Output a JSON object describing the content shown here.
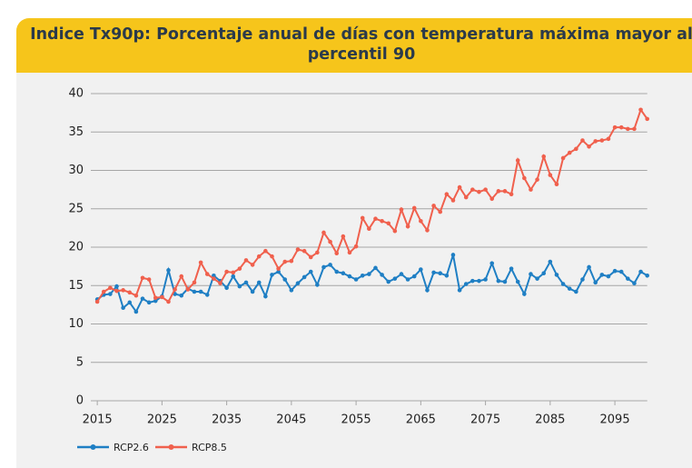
{
  "chart_data": {
    "type": "line",
    "title": "Indice Tx90p: Porcentaje anual de días con temperatura máxima mayor al percentil 90",
    "x": [
      2015,
      2016,
      2017,
      2018,
      2019,
      2020,
      2021,
      2022,
      2023,
      2024,
      2025,
      2026,
      2027,
      2028,
      2029,
      2030,
      2031,
      2032,
      2033,
      2034,
      2035,
      2036,
      2037,
      2038,
      2039,
      2040,
      2041,
      2042,
      2043,
      2044,
      2045,
      2046,
      2047,
      2048,
      2049,
      2050,
      2051,
      2052,
      2053,
      2054,
      2055,
      2056,
      2057,
      2058,
      2059,
      2060,
      2061,
      2062,
      2063,
      2064,
      2065,
      2066,
      2067,
      2068,
      2069,
      2070,
      2071,
      2072,
      2073,
      2074,
      2075,
      2076,
      2077,
      2078,
      2079,
      2080,
      2081,
      2082,
      2083,
      2084,
      2085,
      2086,
      2087,
      2088,
      2089,
      2090,
      2091,
      2092,
      2093,
      2094,
      2095,
      2096,
      2097,
      2098,
      2099,
      2100
    ],
    "series": [
      {
        "name": "RCP2.6",
        "color": "#1f7fc4",
        "values": [
          13.2,
          13.8,
          13.9,
          14.9,
          12.1,
          12.8,
          11.6,
          13.3,
          12.8,
          13.0,
          13.6,
          17.0,
          13.9,
          13.7,
          14.6,
          14.2,
          14.2,
          13.8,
          16.3,
          15.6,
          14.7,
          16.2,
          14.9,
          15.4,
          14.2,
          15.4,
          13.6,
          16.4,
          16.8,
          15.8,
          14.4,
          15.3,
          16.1,
          16.8,
          15.1,
          17.4,
          17.7,
          16.8,
          16.6,
          16.2,
          15.8,
          16.3,
          16.5,
          17.3,
          16.4,
          15.5,
          15.9,
          16.5,
          15.8,
          16.2,
          17.1,
          14.4,
          16.7,
          16.6,
          16.3,
          19.0,
          14.4,
          15.2,
          15.6,
          15.6,
          15.8,
          17.9,
          15.6,
          15.5,
          17.2,
          15.5,
          13.9,
          16.5,
          15.9,
          16.6,
          18.1,
          16.4,
          15.2,
          14.6,
          14.2,
          15.8,
          17.4,
          15.4,
          16.4,
          16.2,
          16.9,
          16.8,
          15.9,
          15.3,
          16.8,
          16.3
        ]
      },
      {
        "name": "RCP8.5",
        "color": "#f0604d",
        "values": [
          12.9,
          14.2,
          14.7,
          14.3,
          14.4,
          14.1,
          13.7,
          16.0,
          15.8,
          13.4,
          13.5,
          12.9,
          14.5,
          16.2,
          14.5,
          15.4,
          18.0,
          16.5,
          15.9,
          15.3,
          16.8,
          16.7,
          17.2,
          18.3,
          17.7,
          18.8,
          19.5,
          18.8,
          17.2,
          18.1,
          18.2,
          19.7,
          19.5,
          18.7,
          19.3,
          21.9,
          20.7,
          19.2,
          21.4,
          19.3,
          20.1,
          23.8,
          22.4,
          23.7,
          23.4,
          23.1,
          22.1,
          24.9,
          22.7,
          25.1,
          23.4,
          22.2,
          25.4,
          24.6,
          26.9,
          26.1,
          27.8,
          26.5,
          27.5,
          27.2,
          27.5,
          26.3,
          27.3,
          27.3,
          26.9,
          31.3,
          29.0,
          27.5,
          28.8,
          31.8,
          29.4,
          28.2,
          31.6,
          32.3,
          32.8,
          33.9,
          33.1,
          33.8,
          33.9,
          34.1,
          35.6,
          35.6,
          35.4,
          35.4,
          37.9,
          36.7
        ]
      }
    ],
    "xlim": [
      2014,
      2100
    ],
    "xticks": [
      2015,
      2025,
      2035,
      2045,
      2055,
      2065,
      2075,
      2085,
      2095
    ],
    "ylim": [
      0,
      40
    ],
    "yticks": [
      0,
      5,
      10,
      15,
      20,
      25,
      30,
      35,
      40
    ],
    "grid": true,
    "legend": "bottom"
  }
}
